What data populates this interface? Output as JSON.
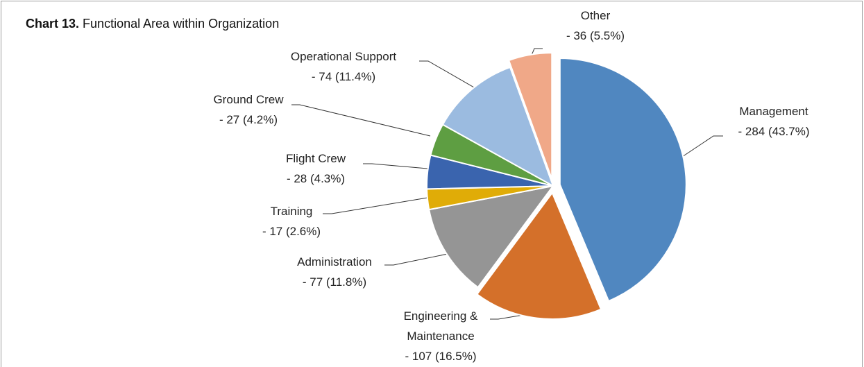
{
  "chart_data": {
    "type": "pie",
    "title_number": "Chart 13.",
    "title": "Functional Area within Organization",
    "categories": [
      "Management",
      "Engineering & Maintenance",
      "Administration",
      "Training",
      "Flight Crew",
      "Ground Crew",
      "Operational Support",
      "Other"
    ],
    "values": [
      284,
      107,
      77,
      17,
      28,
      27,
      74,
      36
    ],
    "value_labels": [
      "- 284 (43.7%)",
      "- 107 (16.5%)",
      "- 77 (11.8%)",
      "- 17 (2.6%)",
      "- 28 (4.3%)",
      "- 27 (4.2%)",
      "- 74 (11.4%)",
      "- 36 (5.5%)"
    ],
    "colors": [
      "#5087c0",
      "#d4702a",
      "#959595",
      "#e0ac07",
      "#3a64ae",
      "#5e9e42",
      "#9bbbe0",
      "#f0a888"
    ],
    "explode": [
      true,
      true,
      false,
      false,
      false,
      false,
      false,
      true
    ]
  }
}
